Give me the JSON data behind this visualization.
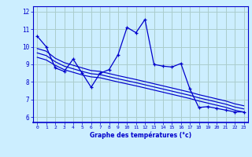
{
  "xlabel": "Graphe des températures (°c)",
  "bg_color": "#cceeff",
  "grid_color": "#aacccc",
  "line_color": "#0000cc",
  "x_ticks": [
    0,
    1,
    2,
    3,
    4,
    5,
    6,
    7,
    8,
    9,
    10,
    11,
    12,
    13,
    14,
    15,
    16,
    17,
    18,
    19,
    20,
    21,
    22,
    23
  ],
  "y_ticks": [
    6,
    7,
    8,
    9,
    10,
    11,
    12
  ],
  "ylim": [
    5.7,
    12.3
  ],
  "xlim": [
    -0.5,
    23.5
  ],
  "series1": [
    10.6,
    10.0,
    8.8,
    8.6,
    9.3,
    8.5,
    7.7,
    8.5,
    8.7,
    9.55,
    11.1,
    10.8,
    11.55,
    9.0,
    8.9,
    8.85,
    9.05,
    7.6,
    6.55,
    6.6,
    6.5,
    6.4,
    6.3,
    6.3
  ],
  "series2": [
    9.9,
    9.75,
    9.35,
    9.1,
    8.95,
    8.8,
    8.65,
    8.6,
    8.48,
    8.36,
    8.25,
    8.14,
    8.02,
    7.9,
    7.78,
    7.66,
    7.54,
    7.42,
    7.28,
    7.16,
    7.04,
    6.92,
    6.76,
    6.65
  ],
  "series3": [
    9.65,
    9.5,
    9.15,
    8.9,
    8.75,
    8.6,
    8.47,
    8.42,
    8.3,
    8.18,
    8.07,
    7.96,
    7.84,
    7.72,
    7.6,
    7.48,
    7.36,
    7.24,
    7.1,
    6.98,
    6.86,
    6.74,
    6.58,
    6.47
  ],
  "series4": [
    9.4,
    9.25,
    8.95,
    8.7,
    8.55,
    8.4,
    8.29,
    8.24,
    8.12,
    8.0,
    7.89,
    7.78,
    7.66,
    7.54,
    7.42,
    7.3,
    7.18,
    7.06,
    6.92,
    6.8,
    6.68,
    6.56,
    6.4,
    6.29
  ]
}
